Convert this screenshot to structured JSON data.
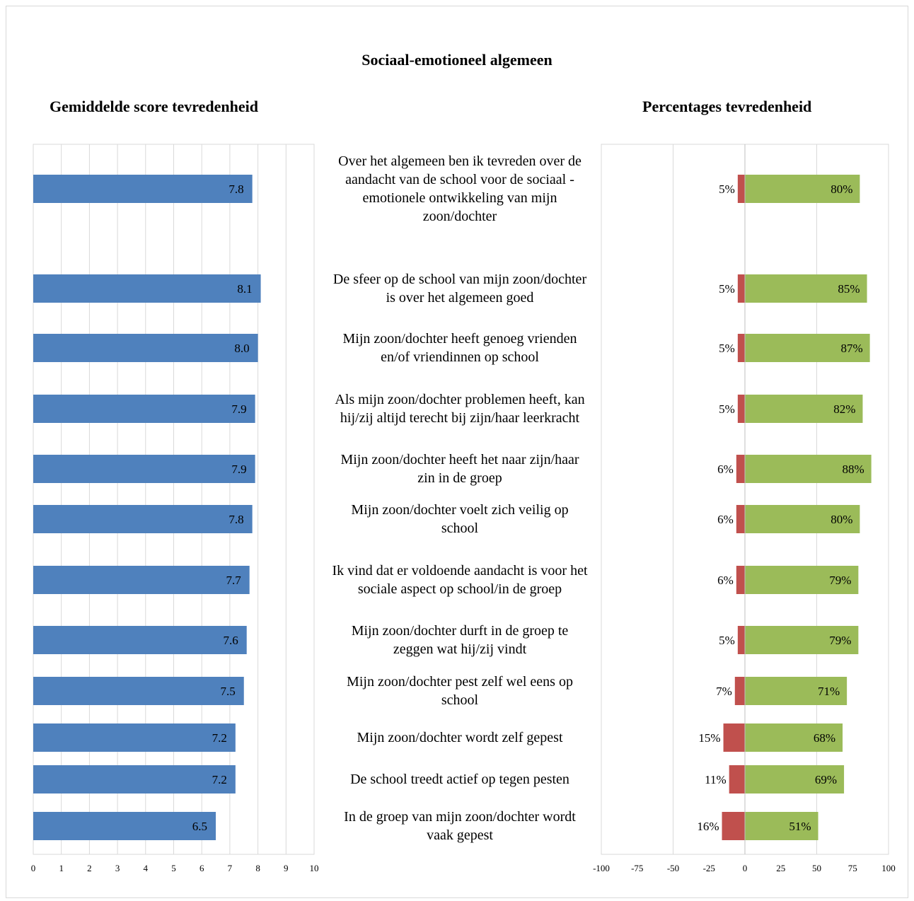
{
  "title": "Sociaal-emotioneel algemeen",
  "left_title": "Gemiddelde score tevredenheid",
  "right_title": "Percentages tevredenheid",
  "colors": {
    "score_bar": "#4F81BD",
    "negative": "#C0504D",
    "positive": "#9BBB59",
    "grid": "#d9d9d9"
  },
  "chart_data": [
    {
      "type": "bar",
      "orientation": "horizontal",
      "title": "Gemiddelde score tevredenheid",
      "xlim": [
        0,
        10
      ],
      "xticks": [
        0,
        1,
        2,
        3,
        4,
        5,
        6,
        7,
        8,
        9,
        10
      ],
      "grid": true,
      "categories": [
        "Over het algemeen ben ik tevreden over de aandacht van de school voor de sociaal - emotionele ontwikkeling van mijn zoon/dochter",
        "De sfeer op de school van mijn zoon/dochter is over het algemeen goed",
        "Mijn zoon/dochter heeft genoeg vrienden en/of vriendinnen op school",
        "Als mijn zoon/dochter problemen heeft, kan hij/zij altijd terecht bij zijn/haar leerkracht",
        "Mijn zoon/dochter heeft het naar zijn/haar zin in de groep",
        "Mijn zoon/dochter voelt zich veilig op school",
        "Ik vind dat er voldoende aandacht is voor het sociale aspect op school/in de groep",
        "Mijn zoon/dochter durft in de groep te zeggen wat hij/zij vindt",
        "Mijn zoon/dochter pest zelf wel eens op school",
        "Mijn zoon/dochter wordt zelf gepest",
        "De school treedt actief op tegen pesten",
        "In de groep van mijn zoon/dochter wordt vaak gepest"
      ],
      "values": [
        7.8,
        8.1,
        8.0,
        7.9,
        7.9,
        7.8,
        7.7,
        7.6,
        7.5,
        7.2,
        7.2,
        6.5
      ],
      "data_labels": [
        "7.8",
        "8.1",
        "8.0",
        "7.9",
        "7.9",
        "7.8",
        "7.7",
        "7.6",
        "7.5",
        "7.2",
        "7.2",
        "6.5"
      ]
    },
    {
      "type": "bar",
      "orientation": "horizontal",
      "stacked": "diverging",
      "title": "Percentages tevredenheid",
      "xlim": [
        -100,
        100
      ],
      "xticks": [
        -100,
        -75,
        -50,
        -25,
        0,
        25,
        50,
        75,
        100
      ],
      "grid": true,
      "series": [
        {
          "values": [
            -5,
            -5,
            -5,
            -5,
            -6,
            -6,
            -6,
            -5,
            -7,
            -15,
            -11,
            -16
          ],
          "data_labels": [
            "5%",
            "5%",
            "5%",
            "5%",
            "6%",
            "6%",
            "6%",
            "5%",
            "7%",
            "15%",
            "11%",
            "16%"
          ]
        },
        {
          "values": [
            80,
            85,
            87,
            82,
            88,
            80,
            79,
            79,
            71,
            68,
            69,
            51
          ],
          "data_labels": [
            "80%",
            "85%",
            "87%",
            "82%",
            "88%",
            "80%",
            "79%",
            "79%",
            "71%",
            "68%",
            "69%",
            "51%"
          ]
        }
      ]
    }
  ]
}
